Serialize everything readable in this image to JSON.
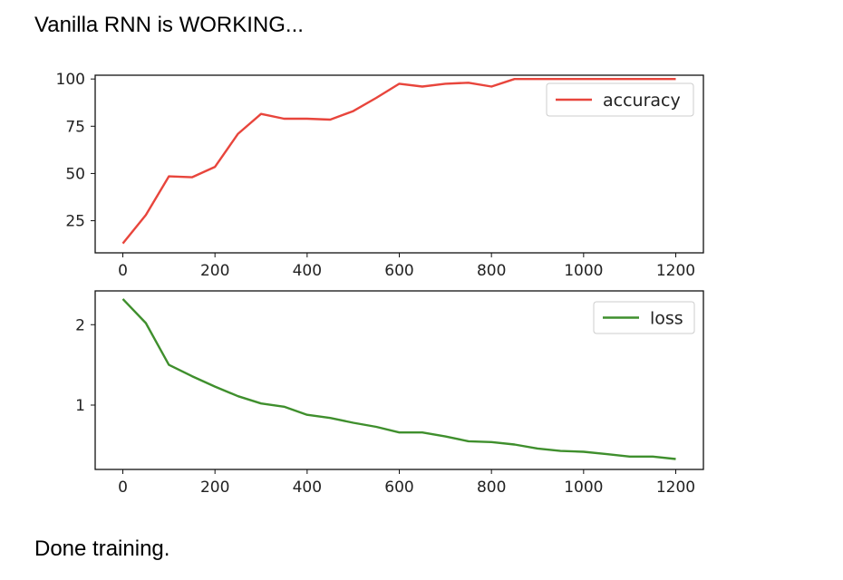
{
  "output": {
    "status_start": "Vanilla RNN is WORKING...",
    "status_end": "Done training."
  },
  "colors": {
    "accuracy": "#e8453c",
    "loss": "#3f8f2d"
  },
  "chart_data": [
    {
      "type": "line",
      "series": [
        {
          "name": "accuracy",
          "x": [
            0,
            50,
            100,
            150,
            200,
            250,
            300,
            350,
            400,
            450,
            500,
            550,
            600,
            650,
            700,
            750,
            800,
            850,
            900,
            950,
            1000,
            1050,
            1100,
            1150,
            1200
          ],
          "values": [
            13,
            28,
            48.5,
            48,
            53.5,
            71,
            81.5,
            79,
            79,
            78.5,
            83,
            90,
            97.5,
            96,
            97.5,
            98,
            96,
            100,
            100,
            100,
            100,
            100,
            100,
            100,
            100
          ]
        }
      ],
      "xlim": [
        -60,
        1260
      ],
      "ylim": [
        8,
        102
      ],
      "xticks": [
        "0",
        "200",
        "400",
        "600",
        "800",
        "1000",
        "1200"
      ],
      "xtick_values": [
        0,
        200,
        400,
        600,
        800,
        1000,
        1200
      ],
      "yticks": [
        "25",
        "50",
        "75",
        "100"
      ],
      "ytick_values": [
        25,
        50,
        75,
        100
      ],
      "legend": "top-right",
      "grid": false
    },
    {
      "type": "line",
      "series": [
        {
          "name": "loss",
          "x": [
            0,
            50,
            100,
            150,
            200,
            250,
            300,
            350,
            400,
            450,
            500,
            550,
            600,
            650,
            700,
            750,
            800,
            850,
            900,
            950,
            1000,
            1050,
            1100,
            1150,
            1200
          ],
          "values": [
            2.32,
            2.02,
            1.5,
            1.36,
            1.23,
            1.11,
            1.02,
            0.98,
            0.88,
            0.84,
            0.78,
            0.73,
            0.66,
            0.66,
            0.61,
            0.55,
            0.54,
            0.51,
            0.46,
            0.43,
            0.42,
            0.39,
            0.36,
            0.36,
            0.33
          ]
        }
      ],
      "xlim": [
        -60,
        1260
      ],
      "ylim": [
        0.2,
        2.42
      ],
      "xticks": [
        "0",
        "200",
        "400",
        "600",
        "800",
        "1000",
        "1200"
      ],
      "xtick_values": [
        0,
        200,
        400,
        600,
        800,
        1000,
        1200
      ],
      "yticks": [
        "1",
        "2"
      ],
      "ytick_values": [
        1,
        2
      ],
      "legend": "top-right",
      "grid": false
    }
  ]
}
